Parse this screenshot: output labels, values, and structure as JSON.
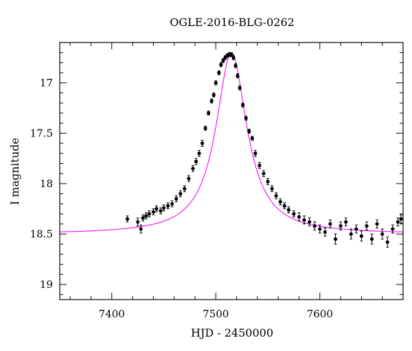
{
  "chart_data": {
    "type": "scatter",
    "title": "OGLE-2016-BLG-0262",
    "xlabel": "HJD - 2450000",
    "ylabel": "I magnitude",
    "xlim": [
      7350,
      7680
    ],
    "ylim": [
      16.6,
      19.15
    ],
    "y_inverted": true,
    "x_ticks": [
      7400,
      7500,
      7600
    ],
    "y_ticks": [
      17,
      17.5,
      18,
      18.5,
      19
    ],
    "x_tick_labels": [
      "7400",
      "7500",
      "7600"
    ],
    "y_tick_labels": [
      "17",
      "17.5",
      "18",
      "18.5",
      "19"
    ],
    "grid": false,
    "model_color": "#ff00ff",
    "point_color": "#000000",
    "model": {
      "baseline_mag": 18.5,
      "peak_time": 7515,
      "peak_mag": 16.7,
      "time_scale": 18,
      "x_range": [
        7350,
        7680
      ]
    },
    "series": [
      {
        "x": [
          7415,
          7425,
          7428,
          7430,
          7433,
          7436,
          7440,
          7443,
          7447,
          7450,
          7454,
          7458,
          7462,
          7466,
          7470,
          7474,
          7478,
          7481,
          7484,
          7487,
          7490,
          7493,
          7496,
          7498,
          7500,
          7503,
          7505,
          7507,
          7509,
          7511,
          7513,
          7515,
          7517,
          7519,
          7521,
          7523,
          7526,
          7529,
          7532,
          7535,
          7538,
          7542,
          7546,
          7550,
          7554,
          7558,
          7562,
          7566,
          7570,
          7575,
          7580,
          7585,
          7590,
          7595,
          7600,
          7605,
          7610,
          7615,
          7620,
          7625,
          7630,
          7635,
          7640,
          7645,
          7650,
          7655,
          7660,
          7665,
          7670,
          7675,
          7678
        ],
        "y": [
          18.35,
          18.38,
          18.45,
          18.34,
          18.32,
          18.3,
          18.28,
          18.25,
          18.27,
          18.24,
          18.22,
          18.2,
          18.15,
          18.1,
          18.05,
          17.95,
          17.85,
          17.78,
          17.7,
          17.6,
          17.45,
          17.3,
          17.18,
          17.12,
          17.0,
          16.9,
          16.82,
          16.78,
          16.75,
          16.73,
          16.72,
          16.72,
          16.75,
          16.83,
          16.93,
          17.05,
          17.22,
          17.35,
          17.48,
          17.55,
          17.7,
          17.82,
          17.9,
          17.98,
          18.05,
          18.12,
          18.18,
          18.22,
          18.26,
          18.3,
          18.33,
          18.36,
          18.38,
          18.42,
          18.45,
          18.48,
          18.4,
          18.55,
          18.42,
          18.38,
          18.5,
          18.45,
          18.52,
          18.42,
          18.55,
          18.4,
          18.5,
          18.58,
          18.45,
          18.38,
          18.35
        ],
        "yerr": [
          0.03,
          0.04,
          0.04,
          0.03,
          0.03,
          0.03,
          0.03,
          0.03,
          0.03,
          0.03,
          0.03,
          0.03,
          0.03,
          0.03,
          0.03,
          0.03,
          0.03,
          0.03,
          0.03,
          0.03,
          0.02,
          0.02,
          0.02,
          0.02,
          0.02,
          0.02,
          0.02,
          0.02,
          0.02,
          0.02,
          0.02,
          0.02,
          0.02,
          0.02,
          0.02,
          0.02,
          0.02,
          0.02,
          0.02,
          0.02,
          0.03,
          0.03,
          0.03,
          0.03,
          0.03,
          0.03,
          0.03,
          0.03,
          0.03,
          0.03,
          0.04,
          0.04,
          0.04,
          0.04,
          0.04,
          0.04,
          0.04,
          0.05,
          0.04,
          0.04,
          0.05,
          0.04,
          0.05,
          0.04,
          0.05,
          0.04,
          0.05,
          0.05,
          0.04,
          0.04,
          0.04
        ]
      }
    ]
  }
}
